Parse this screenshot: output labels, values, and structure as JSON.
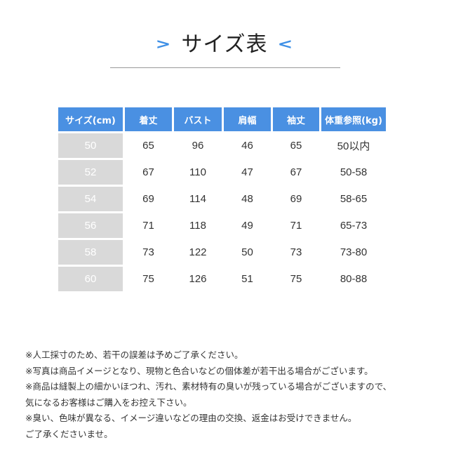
{
  "title": "サイズ表",
  "accent": "#4a90e2",
  "table": {
    "headers": [
      "サイズ(cm)",
      "着丈",
      "バスト",
      "肩幅",
      "袖丈",
      "体重参照(kg)"
    ],
    "rows": [
      [
        "50",
        "65",
        "96",
        "46",
        "65",
        "50以内"
      ],
      [
        "52",
        "67",
        "110",
        "47",
        "67",
        "50-58"
      ],
      [
        "54",
        "69",
        "114",
        "48",
        "69",
        "58-65"
      ],
      [
        "56",
        "71",
        "118",
        "49",
        "71",
        "65-73"
      ],
      [
        "58",
        "73",
        "122",
        "50",
        "73",
        "73-80"
      ],
      [
        "60",
        "75",
        "126",
        "51",
        "75",
        "80-88"
      ]
    ]
  },
  "notes": [
    "※人工採寸のため、若干の誤差は予めご了承ください。",
    "※写真は商品イメージとなり、現物と色合いなどの個体差が若干出る場合がございます。",
    "※商品は縫製上の細かいほつれ、汚れ、素材特有の臭いが残っている場合がございますので、",
    "気になるお客様はご購入をお控え下さい。",
    "※臭い、色味が異なる、イメージ違いなどの理由の交換、返金はお受けできません。",
    "ご了承くださいませ。"
  ]
}
